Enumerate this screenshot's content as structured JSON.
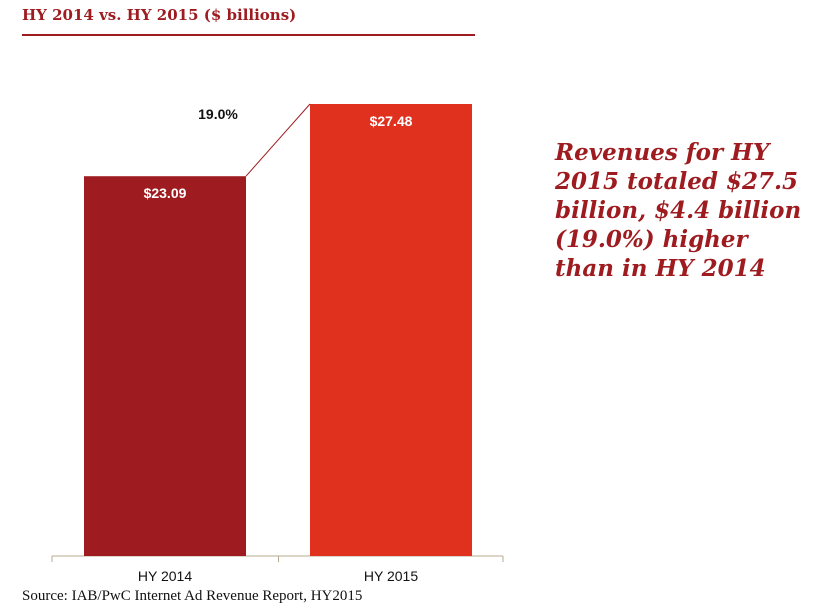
{
  "header": {
    "title": "HY 2014 vs. HY 2015 ($ billions)"
  },
  "chart_data": {
    "type": "bar",
    "title": "HY 2014 vs. HY 2015 ($ billions)",
    "categories": [
      "HY 2014",
      "HY 2015"
    ],
    "values": [
      23.09,
      27.48
    ],
    "data_labels": [
      "$23.09",
      "$27.48"
    ],
    "growth_label": "19.0%",
    "xlabel": "",
    "ylabel": "",
    "ylim": [
      0,
      27.48
    ],
    "grid": false,
    "colors": [
      "#9e1c20",
      "#e0301e"
    ]
  },
  "callout": {
    "text": "Revenues for HY 2015 totaled $27.5 billion, $4.4 billion (19.0%) higher than in HY 2014"
  },
  "footer": {
    "source": "Source: IAB/PwC Internet Ad Revenue Report, HY2015"
  },
  "colors": {
    "accent": "#9e1c20",
    "bar_dark": "#9e1c20",
    "bar_bright": "#e0301e"
  }
}
